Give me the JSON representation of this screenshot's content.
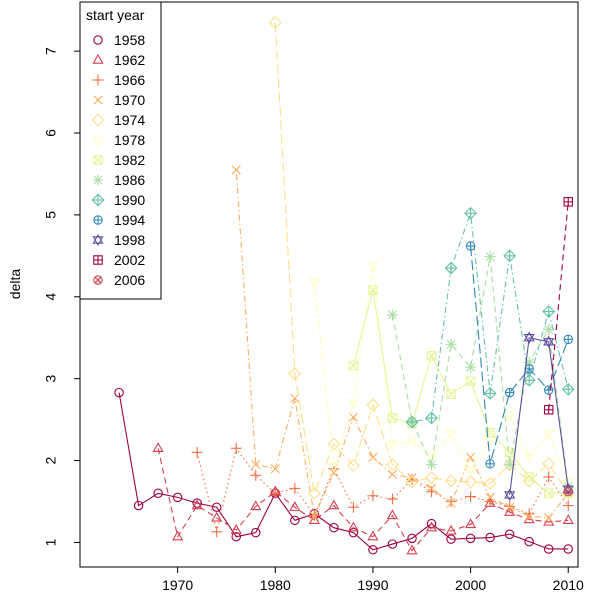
{
  "chart_data": {
    "type": "line",
    "title": "",
    "xlabel": "",
    "ylabel": "delta",
    "xlim": [
      1960,
      2011
    ],
    "ylim": [
      0.7,
      7.6
    ],
    "xticks": [
      1970,
      1980,
      1990,
      2000,
      2010
    ],
    "yticks": [
      1,
      2,
      3,
      4,
      5,
      6,
      7
    ],
    "grid": false,
    "legend": {
      "title": "start year",
      "placement": "top-left"
    },
    "series": [
      {
        "name": "1958",
        "color": "#9e0142",
        "marker": "circle",
        "dash": "solid",
        "x": [
          1964,
          1966,
          1968,
          1970,
          1972,
          1974,
          1976,
          1978,
          1980,
          1982,
          1984,
          1986,
          1988,
          1990,
          1992,
          1994,
          1996,
          1998,
          2000,
          2002,
          2004,
          2006,
          2008,
          2010
        ],
        "y": [
          2.83,
          1.45,
          1.6,
          1.55,
          1.48,
          1.43,
          1.07,
          1.12,
          1.6,
          1.27,
          1.35,
          1.18,
          1.12,
          0.91,
          0.98,
          1.05,
          1.23,
          1.04,
          1.05,
          1.06,
          1.1,
          1.01,
          0.92,
          0.92
        ]
      },
      {
        "name": "1962",
        "color": "#d53e4f",
        "marker": "triangle",
        "dash": "dashed",
        "x": [
          1968,
          1970,
          1972,
          1974,
          1976,
          1978,
          1980,
          1982,
          1984,
          1986,
          1988,
          1990,
          1992,
          1994,
          1996,
          1998,
          2000,
          2002,
          2004,
          2006,
          2008,
          2010
        ],
        "y": [
          2.15,
          1.07,
          1.45,
          1.3,
          1.15,
          1.44,
          1.62,
          1.43,
          1.27,
          1.45,
          1.18,
          1.07,
          1.33,
          0.9,
          1.18,
          1.14,
          1.22,
          1.48,
          1.37,
          1.28,
          1.25,
          1.27
        ]
      },
      {
        "name": "1966",
        "color": "#f46d43",
        "marker": "plus",
        "dash": "dotted",
        "x": [
          1972,
          1974,
          1976,
          1978,
          1980,
          1982,
          1984,
          1986,
          1988,
          1990,
          1992,
          1994,
          1996,
          1998,
          2000,
          2002,
          2004,
          2006,
          2008,
          2010
        ],
        "y": [
          2.1,
          1.13,
          2.15,
          1.82,
          1.6,
          1.66,
          1.33,
          1.9,
          1.43,
          1.57,
          1.53,
          1.77,
          1.62,
          1.5,
          1.56,
          1.5,
          1.44,
          1.35,
          1.8,
          1.45
        ]
      },
      {
        "name": "1970",
        "color": "#fdae61",
        "marker": "x",
        "dash": "dotdash",
        "x": [
          1976,
          1978,
          1980,
          1982,
          1984,
          1986,
          1988,
          1990,
          1992,
          1994,
          1996,
          1998,
          2000,
          2002,
          2004,
          2006,
          2008,
          2010
        ],
        "y": [
          5.55,
          1.95,
          1.9,
          2.76,
          1.32,
          1.85,
          2.53,
          2.04,
          1.83,
          1.79,
          1.66,
          1.48,
          2.04,
          1.55,
          1.43,
          1.32,
          1.3,
          1.6
        ]
      },
      {
        "name": "1974",
        "color": "#fee08b",
        "marker": "diamond",
        "dash": "longdash",
        "x": [
          1980,
          1982,
          1984,
          1986,
          1988,
          1990,
          1992,
          1994,
          1996,
          1998,
          2000,
          2002,
          2004,
          2006,
          2008,
          2010
        ],
        "y": [
          7.35,
          3.06,
          1.6,
          2.2,
          1.94,
          2.68,
          1.95,
          1.74,
          1.79,
          1.75,
          1.74,
          1.72,
          1.95,
          1.75,
          1.96,
          1.6
        ]
      },
      {
        "name": "1978",
        "color": "#ffffbf",
        "marker": "triangle-down",
        "dash": "twodash",
        "x": [
          1984,
          1986,
          1988,
          1990,
          1992,
          1994,
          1996,
          1998,
          2000,
          2002,
          2004,
          2006,
          2008,
          2010
        ],
        "y": [
          4.18,
          1.93,
          2.7,
          4.38,
          2.2,
          2.24,
          2.05,
          2.33,
          1.88,
          2.25,
          2.55,
          2.05,
          2.33,
          1.73
        ]
      },
      {
        "name": "1982",
        "color": "#e6f598",
        "marker": "square-x",
        "dash": "solid",
        "x": [
          1988,
          1990,
          1992,
          1994,
          1996,
          1998,
          2000,
          2002,
          2004,
          2006,
          2008,
          2010
        ],
        "y": [
          3.16,
          4.08,
          2.52,
          2.45,
          3.28,
          2.81,
          2.97,
          2.34,
          2.1,
          1.8,
          1.6,
          1.6
        ]
      },
      {
        "name": "1986",
        "color": "#abdda4",
        "marker": "asterisk",
        "dash": "dashed",
        "x": [
          1992,
          1994,
          1996,
          1998,
          2000,
          2002,
          2004,
          2006,
          2008,
          2010
        ],
        "y": [
          3.78,
          2.48,
          1.95,
          3.42,
          3.14,
          4.49,
          1.95,
          3.2,
          3.6,
          1.68
        ]
      },
      {
        "name": "1990",
        "color": "#66c2a5",
        "marker": "circle-plus-diamond",
        "dash": "dotdash",
        "x": [
          1994,
          1996,
          1998,
          2000,
          2002,
          2004,
          2006,
          2008,
          2010
        ],
        "y": [
          2.47,
          2.52,
          4.35,
          5.02,
          2.82,
          4.5,
          2.98,
          3.82,
          2.87
        ]
      },
      {
        "name": "1994",
        "color": "#3288bd",
        "marker": "circle-plus",
        "dash": "longdash",
        "x": [
          2000,
          2002,
          2004,
          2006,
          2008,
          2010
        ],
        "y": [
          4.62,
          1.96,
          2.83,
          3.12,
          2.86,
          3.48
        ]
      },
      {
        "name": "1998",
        "color": "#5e4fa2",
        "marker": "star-of-david",
        "dash": "solid",
        "x": [
          2004,
          2006,
          2008,
          2010
        ],
        "y": [
          1.58,
          3.5,
          3.45,
          1.65
        ]
      },
      {
        "name": "2002",
        "color": "#9e0142",
        "marker": "square-plus",
        "dash": "dashed",
        "x": [
          2008,
          2010
        ],
        "y": [
          2.62,
          5.16
        ]
      },
      {
        "name": "2006",
        "color": "#d53e4f",
        "marker": "circle-x",
        "dash": "solid",
        "x": [
          2010
        ],
        "y": [
          1.62
        ]
      }
    ]
  }
}
